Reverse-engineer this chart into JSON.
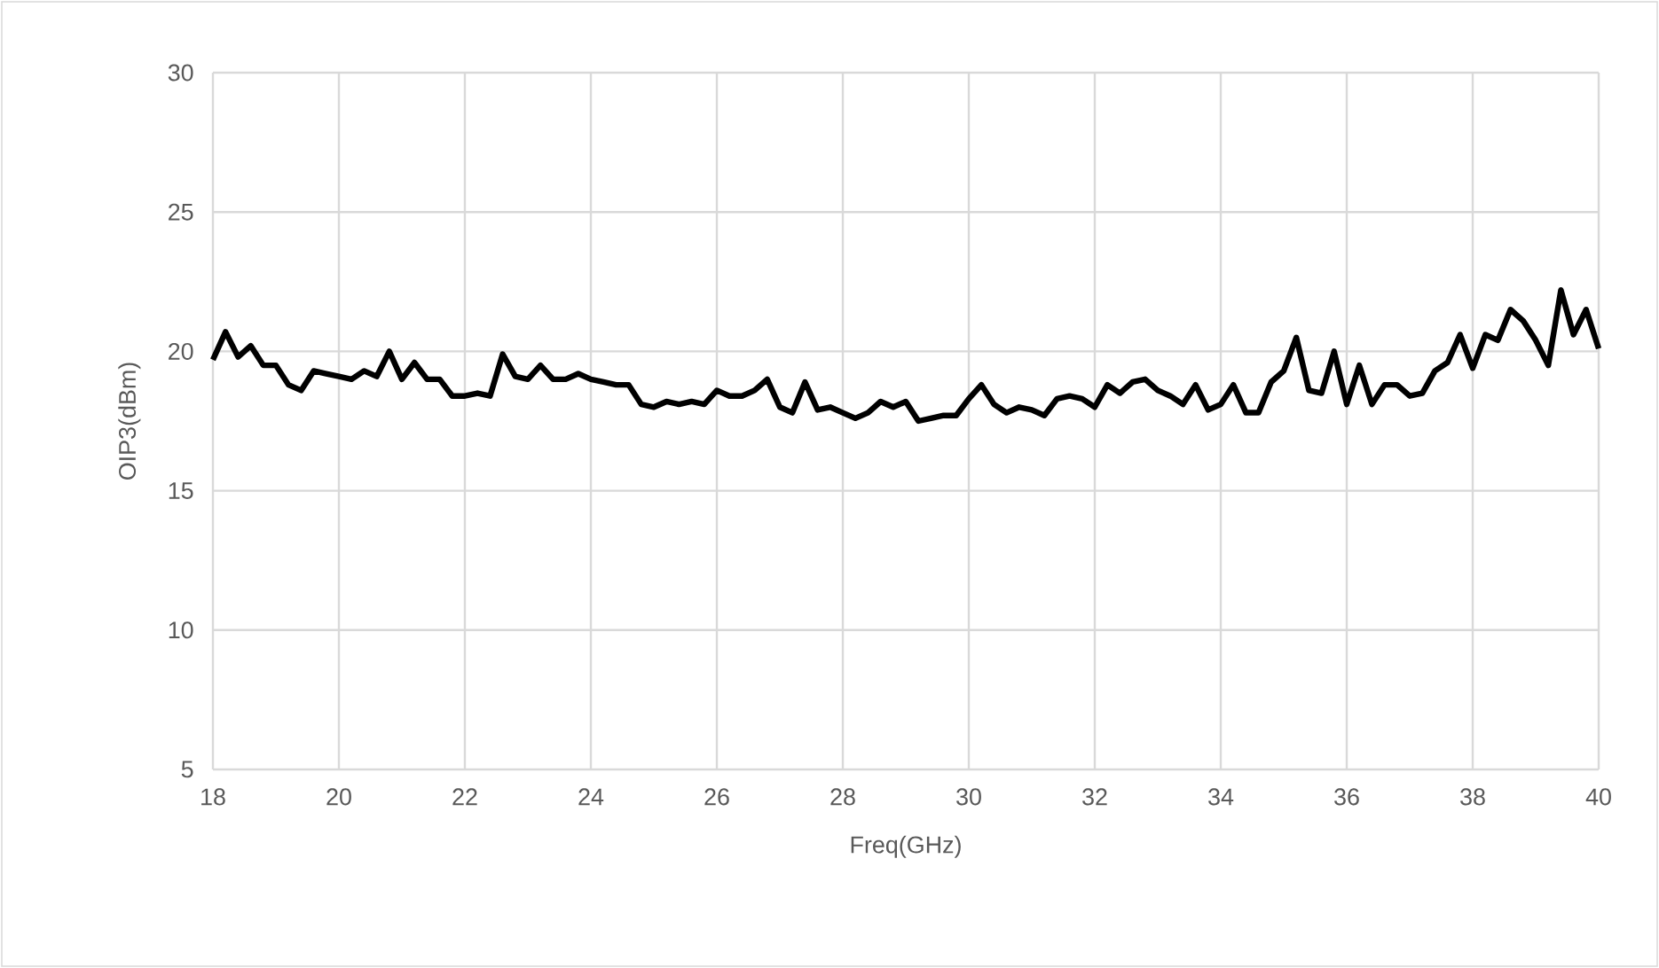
{
  "chart_data": {
    "type": "line",
    "xlabel": "Freq(GHz)",
    "ylabel": "OIP3(dBm)",
    "xlim": [
      18,
      40
    ],
    "ylim": [
      5,
      30
    ],
    "xticks": [
      18,
      20,
      22,
      24,
      26,
      28,
      30,
      32,
      34,
      36,
      38,
      40
    ],
    "yticks": [
      5,
      10,
      15,
      20,
      25,
      30
    ],
    "grid": true,
    "marker": "none",
    "line_style": "solid",
    "series": [
      {
        "color": "#000000",
        "x": [
          18.0,
          18.2,
          18.4,
          18.6,
          18.8,
          19.0,
          19.2,
          19.4,
          19.6,
          19.8,
          20.0,
          20.2,
          20.4,
          20.6,
          20.8,
          21.0,
          21.2,
          21.4,
          21.6,
          21.8,
          22.0,
          22.2,
          22.4,
          22.6,
          22.8,
          23.0,
          23.2,
          23.4,
          23.6,
          23.8,
          24.0,
          24.2,
          24.4,
          24.6,
          24.8,
          25.0,
          25.2,
          25.4,
          25.6,
          25.8,
          26.0,
          26.2,
          26.4,
          26.6,
          26.8,
          27.0,
          27.2,
          27.4,
          27.6,
          27.8,
          28.0,
          28.2,
          28.4,
          28.6,
          28.8,
          29.0,
          29.2,
          29.4,
          29.6,
          29.8,
          30.0,
          30.2,
          30.4,
          30.6,
          30.8,
          31.0,
          31.2,
          31.4,
          31.6,
          31.8,
          32.0,
          32.2,
          32.4,
          32.6,
          32.8,
          33.0,
          33.2,
          33.4,
          33.6,
          33.8,
          34.0,
          34.2,
          34.4,
          34.6,
          34.8,
          35.0,
          35.2,
          35.4,
          35.6,
          35.8,
          36.0,
          36.2,
          36.4,
          36.6,
          36.8,
          37.0,
          37.2,
          37.4,
          37.6,
          37.8,
          38.0,
          38.2,
          38.4,
          38.6,
          38.8,
          39.0,
          39.2,
          39.4,
          39.6,
          39.8,
          40.0
        ],
        "values": [
          19.7,
          20.7,
          19.8,
          20.2,
          19.5,
          19.5,
          18.8,
          18.6,
          19.3,
          19.2,
          19.1,
          19.0,
          19.3,
          19.1,
          20.0,
          19.0,
          19.6,
          19.0,
          19.0,
          18.4,
          18.4,
          18.5,
          18.4,
          19.9,
          19.1,
          19.0,
          19.5,
          19.0,
          19.0,
          19.2,
          19.0,
          18.9,
          18.8,
          18.8,
          18.1,
          18.0,
          18.2,
          18.1,
          18.2,
          18.1,
          18.6,
          18.4,
          18.4,
          18.6,
          19.0,
          18.0,
          17.8,
          18.9,
          17.9,
          18.0,
          17.8,
          17.6,
          17.8,
          18.2,
          18.0,
          18.2,
          17.5,
          17.6,
          17.7,
          17.7,
          18.3,
          18.8,
          18.1,
          17.8,
          18.0,
          17.9,
          17.7,
          18.3,
          18.4,
          18.3,
          18.0,
          18.8,
          18.5,
          18.9,
          19.0,
          18.6,
          18.4,
          18.1,
          18.8,
          17.9,
          18.1,
          18.8,
          17.8,
          17.8,
          18.9,
          19.3,
          20.5,
          18.6,
          18.5,
          20.0,
          18.1,
          19.5,
          18.1,
          18.8,
          18.8,
          18.4,
          18.5,
          19.3,
          19.6,
          20.6,
          19.4,
          20.6,
          20.4,
          21.5,
          21.1,
          20.4,
          19.5,
          22.2,
          20.6,
          21.5,
          20.1
        ]
      }
    ]
  }
}
